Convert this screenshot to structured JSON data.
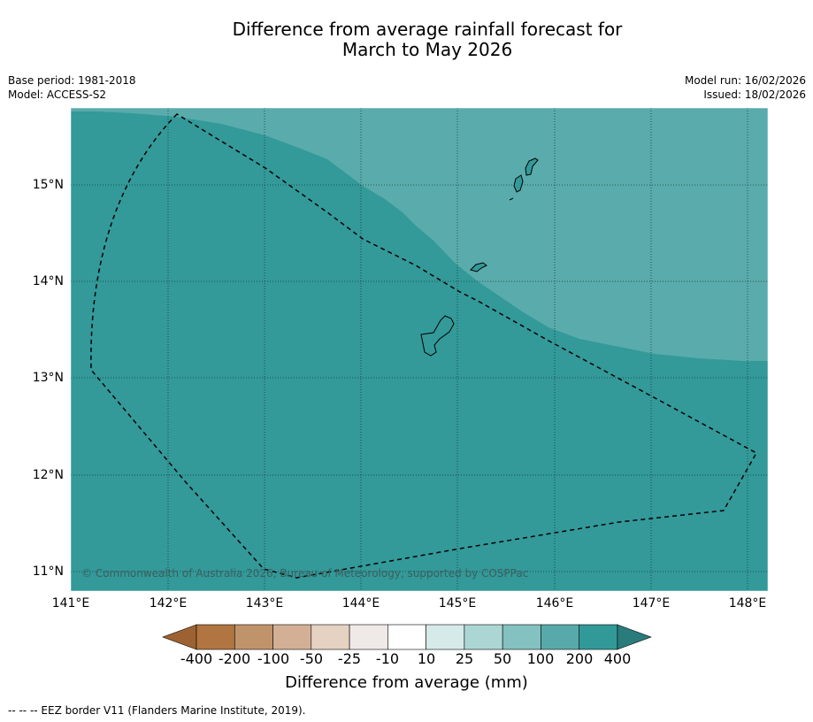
{
  "title": {
    "line1": "Difference from average rainfall forecast for",
    "line2": "March to May 2026"
  },
  "meta": {
    "base_period": "Base period: 1981-2018",
    "model": "Model: ACCESS-S2",
    "model_run": "Model run: 16/02/2026",
    "issued": "Issued: 18/02/2026"
  },
  "map": {
    "copyright": "© Commonwealth of Australia 2026, Bureau of Meteorology, supported by COSPPac",
    "lon_ticks": [
      "141°E",
      "142°E",
      "143°E",
      "144°E",
      "145°E",
      "146°E",
      "147°E",
      "148°E"
    ],
    "lat_ticks": [
      "15°N",
      "14°N",
      "13°N",
      "12°N",
      "11°N"
    ],
    "zone_colors": {
      "category_200_400": "#339999",
      "category_100_200": "#5aabab"
    }
  },
  "colorbar": {
    "title": "Difference from average (mm)",
    "labels": [
      "-400",
      "-200",
      "-100",
      "-50",
      "-25",
      "-10",
      "10",
      "25",
      "50",
      "100",
      "200",
      "400"
    ],
    "colors": [
      "#9e6232",
      "#b07540",
      "#c0946a",
      "#d3b095",
      "#e6d2c2",
      "#efeae7",
      "#ffffff",
      "#d6ebe9",
      "#acd6d4",
      "#84c1c1",
      "#58aaaa",
      "#329999",
      "#2a7b7b"
    ]
  },
  "footnote": "--  --  -- EEZ border V11 (Flanders Marine Institute, 2019)."
}
